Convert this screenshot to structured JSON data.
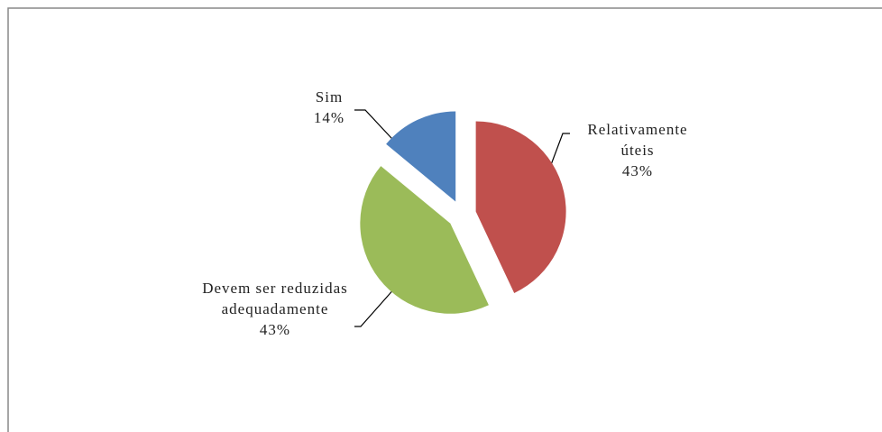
{
  "chart_data": {
    "type": "pie",
    "categories": [
      "Relativamente úteis",
      "Devem ser reduzidas adequadamente",
      "Sim"
    ],
    "values": [
      43,
      43,
      14
    ],
    "value_labels": [
      "43%",
      "43%",
      "14%"
    ],
    "colors": [
      "#c0504d",
      "#9bbb59",
      "#4f81bd"
    ]
  }
}
